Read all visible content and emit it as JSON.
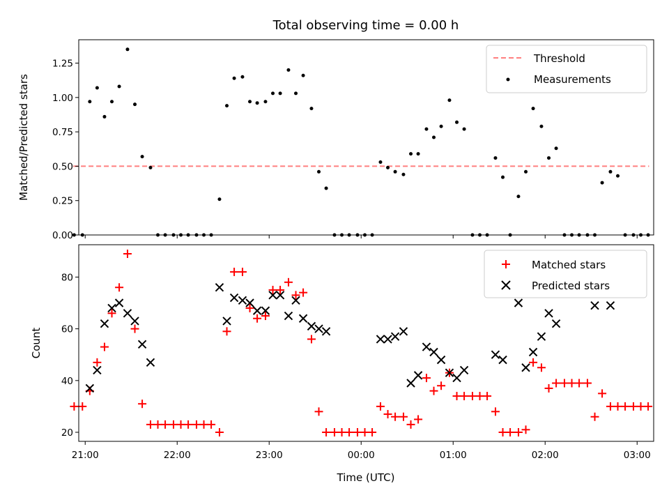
{
  "chart_data": [
    {
      "type": "scatter",
      "title": "Total observing time = 0.00 h",
      "xlabel": "",
      "ylabel": "Matched/Predicted stars",
      "ylim": [
        0,
        1.42
      ],
      "yticks": [
        "0.00",
        "0.25",
        "0.50",
        "0.75",
        "1.00",
        "1.25"
      ],
      "xlim": [
        -0.07,
        6.18
      ],
      "xtick_hours": [
        0,
        1,
        2,
        3,
        4,
        5,
        6
      ],
      "grid": false,
      "legend_position": "top-right",
      "threshold": {
        "name": "Threshold",
        "value": 0.5,
        "x_start": -0.13,
        "x_end": 6.13,
        "color": "#ff7f7f"
      },
      "series": [
        {
          "name": "Measurements",
          "color": "#000000",
          "marker": "dot",
          "x": [
            -0.12,
            -0.03,
            0.05,
            0.13,
            0.21,
            0.29,
            0.37,
            0.46,
            0.54,
            0.62,
            0.71,
            0.79,
            0.87,
            0.96,
            1.04,
            1.12,
            1.21,
            1.29,
            1.37,
            1.46,
            1.54,
            1.62,
            1.71,
            1.79,
            1.87,
            1.96,
            2.04,
            2.12,
            2.21,
            2.29,
            2.37,
            2.46,
            2.54,
            2.62,
            2.71,
            2.79,
            2.87,
            2.96,
            3.04,
            3.12,
            3.21,
            3.29,
            3.37,
            3.46,
            3.54,
            3.62,
            3.71,
            3.79,
            3.87,
            3.96,
            4.04,
            4.12,
            4.21,
            4.29,
            4.37,
            4.46,
            4.54,
            4.62,
            4.71,
            4.79,
            4.87,
            4.96,
            5.04,
            5.12,
            5.21,
            5.29,
            5.37,
            5.46,
            5.54,
            5.62,
            5.71,
            5.79,
            5.87,
            5.96,
            6.04,
            6.12
          ],
          "y": [
            0,
            0,
            0.97,
            1.07,
            0.86,
            0.97,
            1.08,
            1.35,
            0.95,
            0.57,
            0.49,
            0,
            0,
            0,
            0,
            0,
            0,
            0,
            0,
            0.26,
            0.94,
            1.14,
            1.15,
            0.97,
            0.96,
            0.97,
            1.03,
            1.03,
            1.2,
            1.03,
            1.16,
            0.92,
            0.46,
            0.34,
            0,
            0,
            0,
            0,
            0,
            0,
            0.53,
            0.49,
            0.46,
            0.44,
            0.59,
            0.59,
            0.77,
            0.71,
            0.79,
            0.98,
            0.82,
            0.77,
            0,
            0,
            0,
            0.56,
            0.42,
            0,
            0.28,
            0.46,
            0.92,
            0.79,
            0.56,
            0.63,
            0,
            0,
            0,
            0,
            0,
            0.38,
            0.46,
            0.43,
            0,
            0,
            0,
            0
          ]
        }
      ]
    },
    {
      "type": "scatter",
      "title": "",
      "xlabel": "Time (UTC)",
      "ylabel": "Count",
      "ylim": [
        16.5,
        92.5
      ],
      "yticks": [
        "20",
        "40",
        "60",
        "80"
      ],
      "xlim": [
        -0.07,
        6.18
      ],
      "xtick_hours": [
        0,
        1,
        2,
        3,
        4,
        5,
        6
      ],
      "xtick_labels": [
        "21:00",
        "22:00",
        "23:00",
        "00:00",
        "01:00",
        "02:00",
        "03:00"
      ],
      "grid": false,
      "legend_position": "top-right",
      "series": [
        {
          "name": "Matched stars",
          "color": "#ff0000",
          "marker": "plus",
          "x": [
            -0.12,
            -0.03,
            0.05,
            0.13,
            0.21,
            0.29,
            0.37,
            0.46,
            0.54,
            0.62,
            0.71,
            0.79,
            0.87,
            0.96,
            1.04,
            1.12,
            1.21,
            1.29,
            1.37,
            1.46,
            1.54,
            1.62,
            1.71,
            1.79,
            1.87,
            1.96,
            2.04,
            2.12,
            2.21,
            2.29,
            2.37,
            2.46,
            2.54,
            2.62,
            2.71,
            2.79,
            2.87,
            2.96,
            3.04,
            3.12,
            3.21,
            3.29,
            3.37,
            3.46,
            3.54,
            3.62,
            3.71,
            3.79,
            3.87,
            3.96,
            4.04,
            4.12,
            4.21,
            4.29,
            4.37,
            4.46,
            4.54,
            4.62,
            4.71,
            4.79,
            4.87,
            4.96,
            5.04,
            5.12,
            5.21,
            5.29,
            5.37,
            5.46,
            5.54,
            5.62,
            5.71,
            5.79,
            5.87,
            5.96,
            6.04,
            6.12
          ],
          "y": [
            30,
            30,
            36,
            47,
            53,
            66,
            76,
            89,
            60,
            31,
            23,
            23,
            23,
            23,
            23,
            23,
            23,
            23,
            23,
            20,
            59,
            82,
            82,
            68,
            64,
            65,
            75,
            75,
            78,
            73,
            74,
            56,
            28,
            20,
            20,
            20,
            20,
            20,
            20,
            20,
            30,
            27,
            26,
            26,
            23,
            25,
            41,
            36,
            38,
            43,
            34,
            34,
            34,
            34,
            34,
            28,
            20,
            20,
            20,
            21,
            47,
            45,
            37,
            39,
            39,
            39,
            39,
            39,
            26,
            35,
            30,
            30,
            30,
            30,
            30,
            30
          ]
        },
        {
          "name": "Predicted stars",
          "color": "#000000",
          "marker": "cross",
          "x": [
            0.05,
            0.13,
            0.21,
            0.29,
            0.37,
            0.46,
            0.54,
            0.62,
            0.71,
            1.46,
            1.54,
            1.62,
            1.71,
            1.79,
            1.87,
            1.96,
            2.04,
            2.12,
            2.21,
            2.29,
            2.37,
            2.46,
            2.54,
            2.62,
            3.21,
            3.29,
            3.37,
            3.46,
            3.54,
            3.62,
            3.71,
            3.79,
            3.87,
            3.96,
            4.04,
            4.12,
            4.46,
            4.54,
            4.71,
            4.79,
            4.87,
            4.96,
            5.04,
            5.12,
            5.54,
            5.71
          ],
          "y": [
            37,
            44,
            62,
            68,
            70,
            66,
            63,
            54,
            47,
            76,
            63,
            72,
            71,
            70,
            67,
            67,
            73,
            73,
            65,
            71,
            64,
            61,
            60,
            59,
            56,
            56,
            57,
            59,
            39,
            42,
            53,
            51,
            48,
            43,
            41,
            44,
            50,
            48,
            70,
            45,
            51,
            57,
            66,
            62,
            69,
            69
          ]
        }
      ]
    }
  ]
}
